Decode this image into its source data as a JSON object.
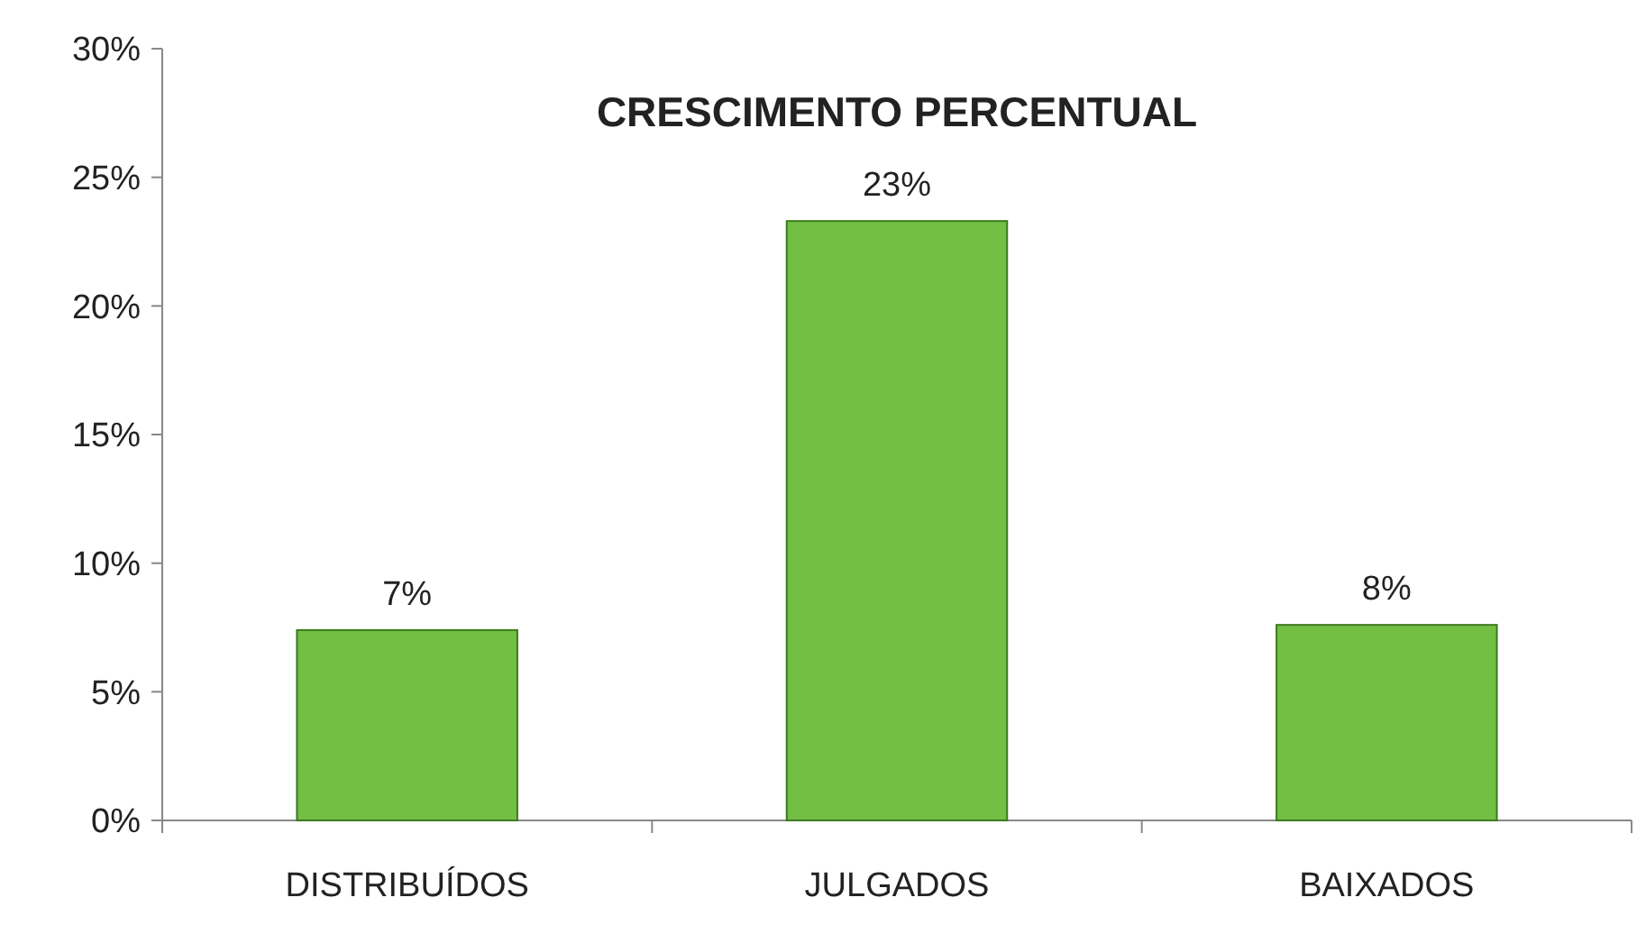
{
  "chart_data": {
    "type": "bar",
    "title": "CRESCIMENTO PERCENTUAL",
    "categories": [
      "DISTRIBUÍDOS",
      "JULGADOS",
      "BAIXADOS"
    ],
    "values": [
      7.4,
      23.3,
      7.6
    ],
    "value_labels": [
      "7%",
      "23%",
      "8%"
    ],
    "color": "#72bf44",
    "ylim": [
      0,
      30
    ],
    "yticks": [
      {
        "value": 0,
        "label": "0%"
      },
      {
        "value": 5,
        "label": "5%"
      },
      {
        "value": 10,
        "label": "10%"
      },
      {
        "value": 15,
        "label": "15%"
      },
      {
        "value": 20,
        "label": "20%"
      },
      {
        "value": 25,
        "label": "25%"
      },
      {
        "value": 30,
        "label": "30%"
      }
    ],
    "grid": false
  }
}
